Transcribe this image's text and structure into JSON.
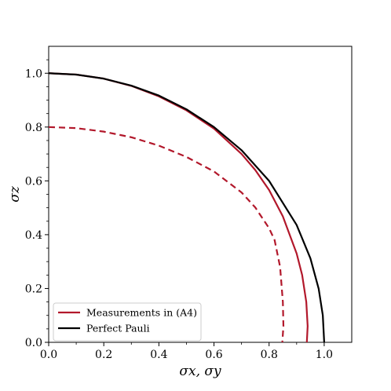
{
  "chart_data": {
    "type": "line",
    "title": "",
    "xlabel": "σx, σy",
    "ylabel": "σz",
    "xlim": [
      0.0,
      1.1
    ],
    "ylim": [
      0.0,
      1.1
    ],
    "xticks": [
      "0.0",
      "0.2",
      "0.4",
      "0.6",
      "0.8",
      "1.0"
    ],
    "yticks": [
      "0.0",
      "0.2",
      "0.4",
      "0.6",
      "0.8",
      "1.0"
    ],
    "grid": false,
    "legend_position": "lower-left",
    "series": [
      {
        "name": "Measurements in (A4)",
        "color": "#b2182b",
        "style": "solid",
        "points": [
          [
            0.0,
            1.0
          ],
          [
            0.1,
            0.995
          ],
          [
            0.2,
            0.98
          ],
          [
            0.3,
            0.953
          ],
          [
            0.4,
            0.914
          ],
          [
            0.5,
            0.862
          ],
          [
            0.6,
            0.794
          ],
          [
            0.7,
            0.7
          ],
          [
            0.75,
            0.64
          ],
          [
            0.8,
            0.566
          ],
          [
            0.85,
            0.468
          ],
          [
            0.9,
            0.33
          ],
          [
            0.92,
            0.25
          ],
          [
            0.935,
            0.15
          ],
          [
            0.94,
            0.06
          ],
          [
            0.937,
            0.0
          ]
        ]
      },
      {
        "name": "",
        "color": "#b2182b",
        "style": "dashed",
        "points": [
          [
            0.0,
            0.8
          ],
          [
            0.1,
            0.796
          ],
          [
            0.2,
            0.783
          ],
          [
            0.3,
            0.762
          ],
          [
            0.4,
            0.731
          ],
          [
            0.5,
            0.689
          ],
          [
            0.6,
            0.635
          ],
          [
            0.7,
            0.557
          ],
          [
            0.75,
            0.501
          ],
          [
            0.8,
            0.424
          ],
          [
            0.82,
            0.38
          ],
          [
            0.84,
            0.28
          ],
          [
            0.85,
            0.15
          ],
          [
            0.852,
            0.06
          ],
          [
            0.848,
            0.0
          ]
        ]
      },
      {
        "name": "Perfect Pauli",
        "color": "#000000",
        "style": "solid",
        "points": [
          [
            0.0,
            1.0
          ],
          [
            0.1,
            0.995
          ],
          [
            0.2,
            0.98
          ],
          [
            0.3,
            0.954
          ],
          [
            0.4,
            0.917
          ],
          [
            0.5,
            0.866
          ],
          [
            0.6,
            0.8
          ],
          [
            0.7,
            0.714
          ],
          [
            0.8,
            0.6
          ],
          [
            0.9,
            0.436
          ],
          [
            0.95,
            0.312
          ],
          [
            0.98,
            0.199
          ],
          [
            0.995,
            0.1
          ],
          [
            1.0,
            0.0
          ]
        ]
      }
    ]
  }
}
